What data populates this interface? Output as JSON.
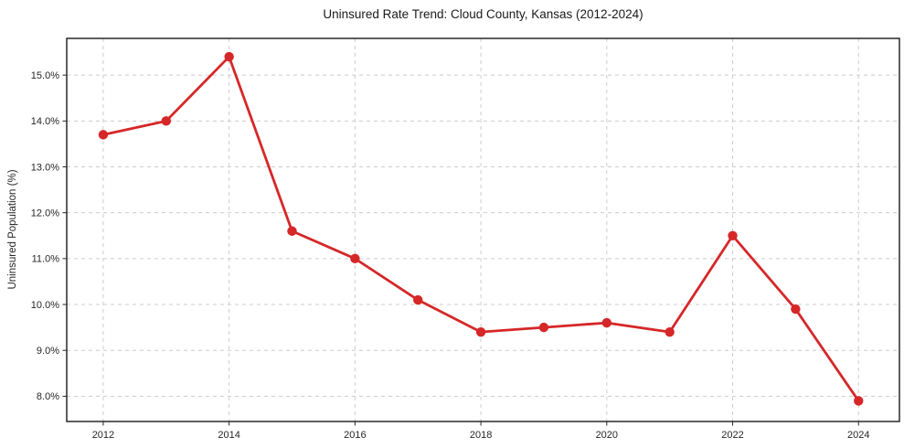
{
  "chart_data": {
    "type": "line",
    "title": "Uninsured Rate Trend: Cloud County, Kansas (2012-2024)",
    "xlabel": "",
    "ylabel": "Uninsured Population (%)",
    "series": [
      {
        "name": "Uninsured rate",
        "x": [
          2012,
          2013,
          2014,
          2015,
          2016,
          2017,
          2018,
          2019,
          2020,
          2021,
          2022,
          2023,
          2024
        ],
        "values": [
          13.7,
          14.0,
          15.4,
          11.6,
          11.0,
          10.1,
          9.4,
          9.5,
          9.6,
          9.4,
          11.5,
          9.9,
          7.9
        ]
      }
    ],
    "x_ticks": [
      2012,
      2014,
      2016,
      2018,
      2020,
      2022,
      2024
    ],
    "x_tick_labels": [
      "2012",
      "2014",
      "2016",
      "2018",
      "2020",
      "2022",
      "2024"
    ],
    "y_ticks": [
      8,
      9,
      10,
      11,
      12,
      13,
      14,
      15
    ],
    "y_tick_labels": [
      "8.0%",
      "9.0%",
      "10.0%",
      "11.0%",
      "12.0%",
      "13.0%",
      "14.0%",
      "15.0%"
    ],
    "xlim": [
      2011.42,
      2024.65
    ],
    "ylim": [
      7.45,
      15.8
    ],
    "grid": true,
    "legend": "none",
    "colors": {
      "line": "#d62728",
      "marker": "#d62728",
      "grid": "#cccccc",
      "spine": "#1a1a1a",
      "tick": "#262626",
      "background": "#ffffff"
    },
    "marker": "circle"
  }
}
